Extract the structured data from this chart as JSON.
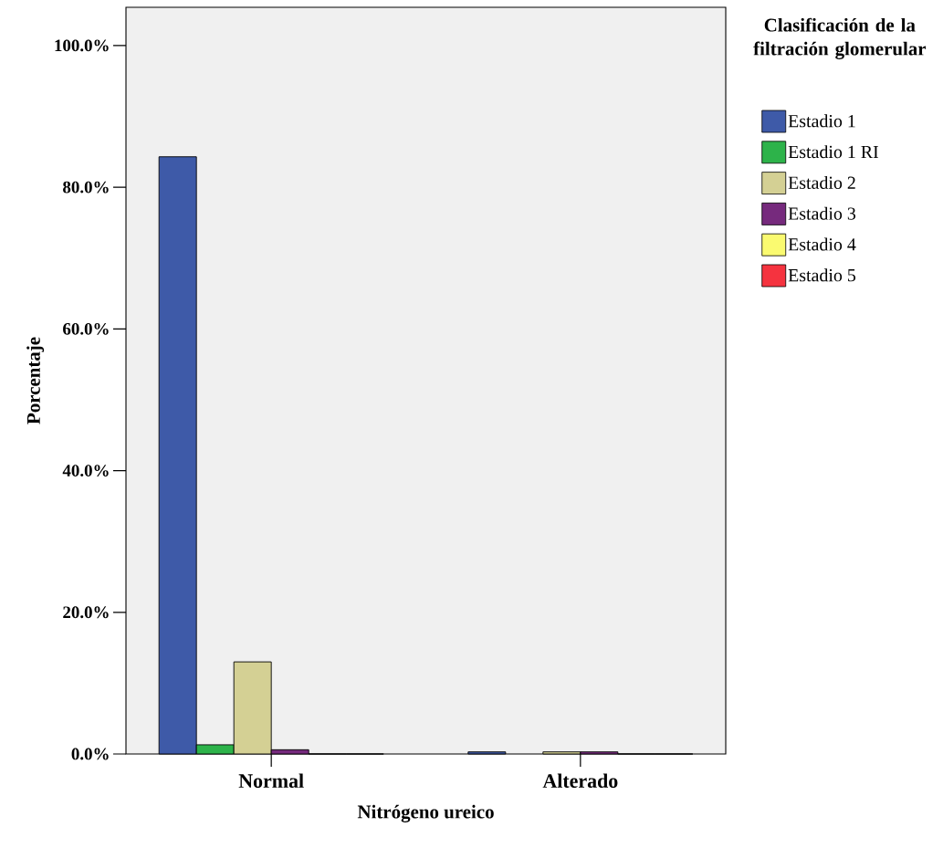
{
  "chart_data": {
    "type": "bar",
    "xlabel": "Nitrógeno ureico",
    "ylabel": "Porcentaje",
    "legend_title": "Clasificación de la filtración glomerular",
    "legend": "right",
    "categories": [
      "Normal",
      "Alterado"
    ],
    "series": [
      {
        "name": "Estadio 1",
        "color": "#3e5aa8",
        "values": [
          84.3,
          0.3
        ]
      },
      {
        "name": "Estadio 1 RI",
        "color": "#2db34a",
        "values": [
          1.3,
          null
        ]
      },
      {
        "name": "Estadio 2",
        "color": "#d4d094",
        "values": [
          13.0,
          0.3
        ]
      },
      {
        "name": "Estadio 3",
        "color": "#762a7d",
        "values": [
          0.6,
          0.3
        ]
      },
      {
        "name": "Estadio 4",
        "color": "#fafa70",
        "values": [
          0,
          0
        ]
      },
      {
        "name": "Estadio 5",
        "color": "#f5333f",
        "values": [
          0,
          0
        ]
      }
    ],
    "ylim": [
      0,
      105.4
    ],
    "yticks": [
      {
        "value": 0,
        "label": "0.0%"
      },
      {
        "value": 20,
        "label": "20.0%"
      },
      {
        "value": 40,
        "label": "40.0%"
      },
      {
        "value": 60,
        "label": "60.0%"
      },
      {
        "value": 80,
        "label": "80.0%"
      },
      {
        "value": 100,
        "label": "100.0%"
      }
    ],
    "grid": false
  }
}
